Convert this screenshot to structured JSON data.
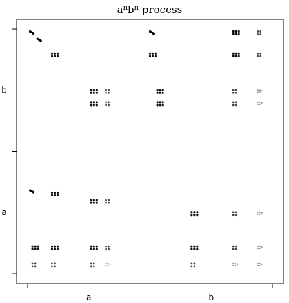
{
  "chart_data": {
    "type": "scatter",
    "title": "aⁿbⁿ process",
    "title_base": "a",
    "title_sup1": "n",
    "title_mid": "b",
    "title_sup2": "n",
    "title_rest": " process",
    "xlabel": "",
    "ylabel": "",
    "grid": false,
    "xlim": [
      0,
      1
    ],
    "ylim": [
      0,
      1
    ],
    "x_ticks": [
      0.0,
      0.5,
      1.0
    ],
    "y_ticks": [
      0.0,
      0.5,
      1.0
    ],
    "x_category_labels": [
      {
        "label": "a",
        "position": 0.25
      },
      {
        "label": "b",
        "position": 0.75
      }
    ],
    "y_category_labels": [
      {
        "label": "a",
        "position": 0.25
      },
      {
        "label": "b",
        "position": 0.75
      }
    ],
    "description_series": "Fractal (Cantor-like) distribution of points; darker points for shallow recursion depth, lighter grey for deeper levels",
    "clusters": [
      {
        "x": 0.01,
        "y": 0.99,
        "depth": 0
      },
      {
        "x": 0.04,
        "y": 0.96,
        "depth": 0
      },
      {
        "x": 0.1,
        "y": 0.9,
        "depth": 1
      },
      {
        "x": 0.26,
        "y": 0.75,
        "depth": 1
      },
      {
        "x": 0.26,
        "y": 0.7,
        "depth": 1
      },
      {
        "x": 0.32,
        "y": 0.75,
        "depth": 2
      },
      {
        "x": 0.32,
        "y": 0.7,
        "depth": 2
      },
      {
        "x": 0.01,
        "y": 0.34,
        "depth": 0
      },
      {
        "x": 0.1,
        "y": 0.33,
        "depth": 1
      },
      {
        "x": 0.26,
        "y": 0.3,
        "depth": 1
      },
      {
        "x": 0.32,
        "y": 0.3,
        "depth": 2
      },
      {
        "x": 0.02,
        "y": 0.11,
        "depth": 1
      },
      {
        "x": 0.1,
        "y": 0.11,
        "depth": 1
      },
      {
        "x": 0.26,
        "y": 0.11,
        "depth": 1
      },
      {
        "x": 0.32,
        "y": 0.11,
        "depth": 2
      },
      {
        "x": 0.02,
        "y": 0.04,
        "depth": 2
      },
      {
        "x": 0.1,
        "y": 0.04,
        "depth": 2
      },
      {
        "x": 0.26,
        "y": 0.04,
        "depth": 2
      },
      {
        "x": 0.32,
        "y": 0.04,
        "depth": 3
      },
      {
        "x": 0.5,
        "y": 0.99,
        "depth": 0
      },
      {
        "x": 0.5,
        "y": 0.9,
        "depth": 1
      },
      {
        "x": 0.53,
        "y": 0.75,
        "depth": 1
      },
      {
        "x": 0.53,
        "y": 0.7,
        "depth": 1
      },
      {
        "x": 0.67,
        "y": 0.25,
        "depth": 1
      },
      {
        "x": 0.67,
        "y": 0.11,
        "depth": 1
      },
      {
        "x": 0.67,
        "y": 0.04,
        "depth": 2
      },
      {
        "x": 0.84,
        "y": 0.99,
        "depth": 1
      },
      {
        "x": 0.84,
        "y": 0.9,
        "depth": 1
      },
      {
        "x": 0.84,
        "y": 0.75,
        "depth": 2
      },
      {
        "x": 0.84,
        "y": 0.7,
        "depth": 2
      },
      {
        "x": 0.84,
        "y": 0.25,
        "depth": 2
      },
      {
        "x": 0.84,
        "y": 0.11,
        "depth": 2
      },
      {
        "x": 0.84,
        "y": 0.04,
        "depth": 3
      },
      {
        "x": 0.94,
        "y": 0.99,
        "depth": 2
      },
      {
        "x": 0.94,
        "y": 0.9,
        "depth": 2
      },
      {
        "x": 0.94,
        "y": 0.75,
        "depth": 3
      },
      {
        "x": 0.94,
        "y": 0.7,
        "depth": 3
      },
      {
        "x": 0.94,
        "y": 0.25,
        "depth": 3
      },
      {
        "x": 0.94,
        "y": 0.11,
        "depth": 3
      },
      {
        "x": 0.94,
        "y": 0.04,
        "depth": 3
      }
    ],
    "depth_colors": [
      "#000000",
      "#111111",
      "#444444",
      "#9a9a9a"
    ]
  }
}
